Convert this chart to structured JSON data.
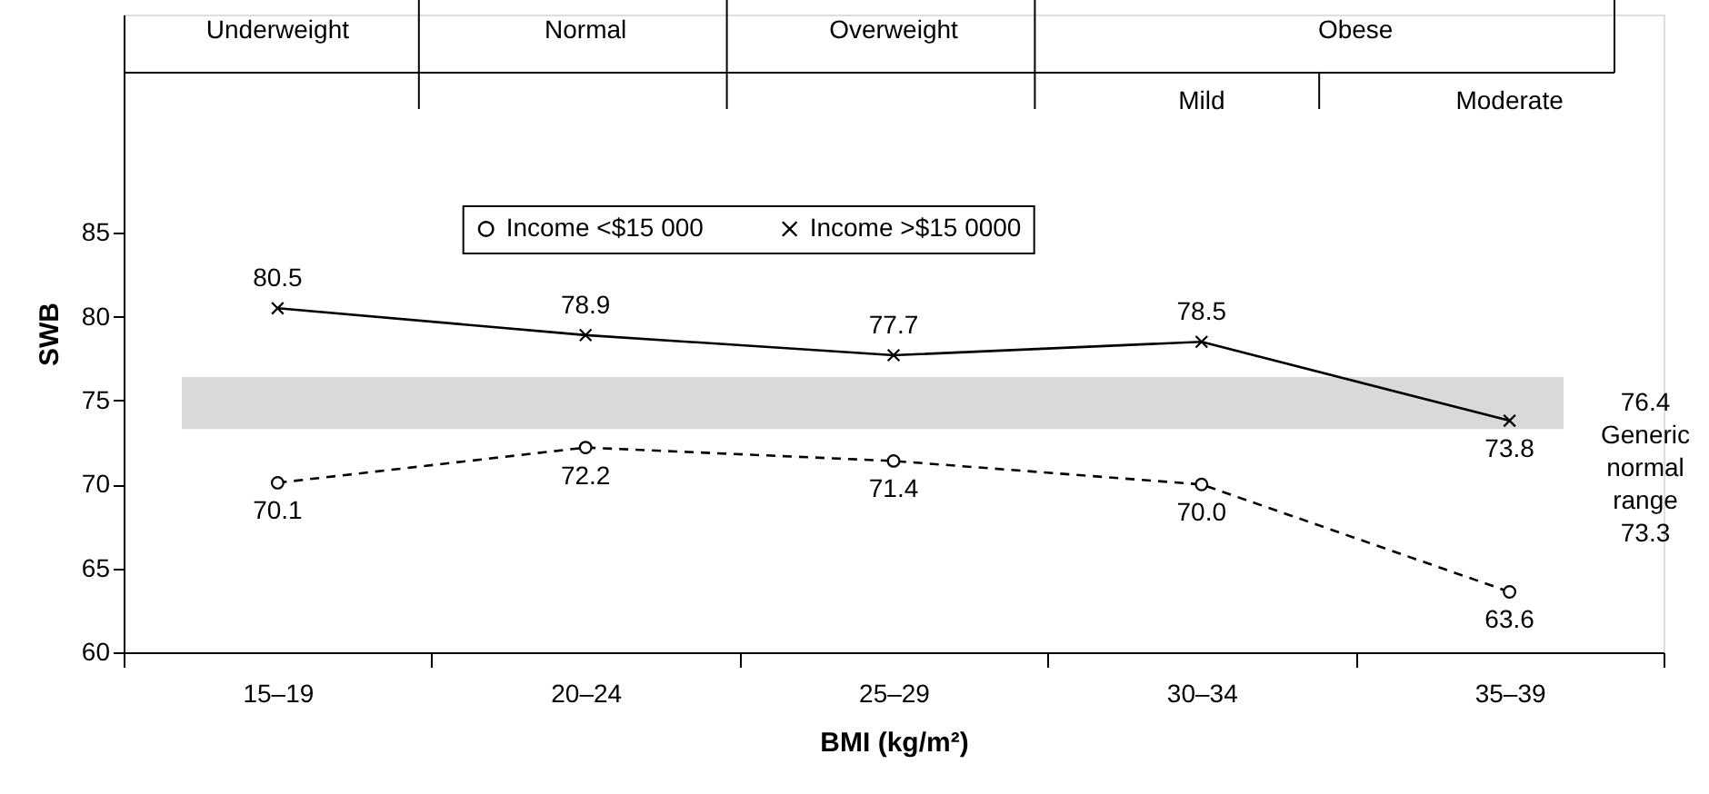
{
  "chart_data": {
    "type": "line",
    "xlabel": "BMI (kg/m²)",
    "ylabel": "SWB",
    "categories": [
      "15–19",
      "20–24",
      "25–29",
      "30–34",
      "35–39"
    ],
    "series": [
      {
        "name": "Income <$15 000",
        "color": "#000000",
        "values": [
          70.1,
          72.2,
          71.4,
          70.0,
          63.6
        ],
        "value_labels": [
          "70.1",
          "72.2",
          "71.4",
          "70.0",
          "63.6"
        ],
        "line_style": "dashed",
        "marker": "circle"
      },
      {
        "name": "Income >$15 0000",
        "color": "#000000",
        "values": [
          80.5,
          78.9,
          77.7,
          78.5,
          73.8
        ],
        "value_labels": [
          "80.5",
          "78.9",
          "77.7",
          "78.5",
          "73.8"
        ],
        "line_style": "solid",
        "marker": "cross"
      }
    ],
    "bands": [
      {
        "axis": "y",
        "from": 73.3,
        "to": 76.4,
        "label": "Generic normal range",
        "color": "#d9d9d9"
      }
    ],
    "annotations": [
      "Underweight",
      "Normal",
      "Overweight",
      "Obese",
      "Mild",
      "Moderate",
      "76.4",
      "73.3"
    ],
    "ylim": [
      60,
      98
    ],
    "yticks": [
      60,
      65,
      70,
      75,
      80,
      85
    ],
    "data_labels": true,
    "legend": "top",
    "grid": false
  }
}
